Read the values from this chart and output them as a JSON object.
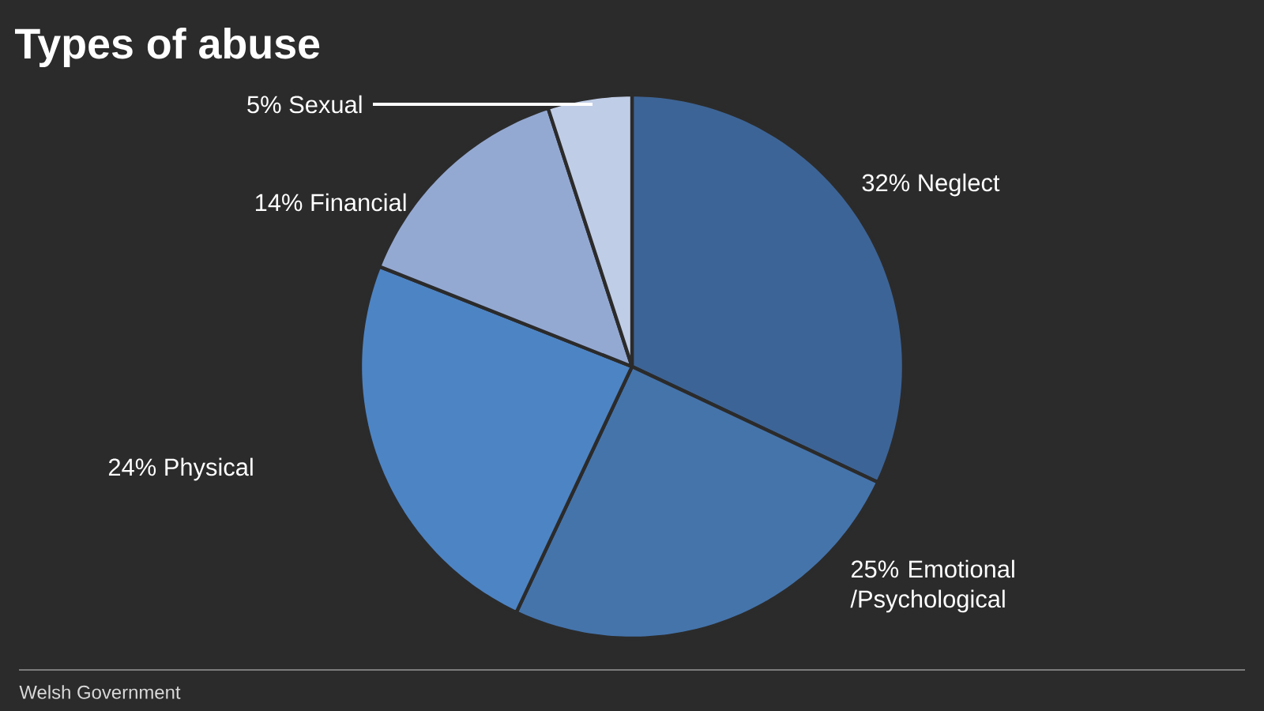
{
  "chart_data": {
    "type": "pie",
    "title": "Types of abuse",
    "categories": [
      "Neglect",
      "Emotional /Psychological",
      "Physical",
      "Financial",
      "Sexual"
    ],
    "values": [
      32,
      25,
      24,
      14,
      5
    ],
    "value_labels": [
      "32%",
      "25%",
      "24%",
      "14%",
      "5%"
    ],
    "colors": [
      "#3d6496",
      "#4574ab",
      "#4d84c4",
      "#94a9d2",
      "#c0cde6"
    ],
    "annotations": [
      "Welsh Government"
    ]
  }
}
